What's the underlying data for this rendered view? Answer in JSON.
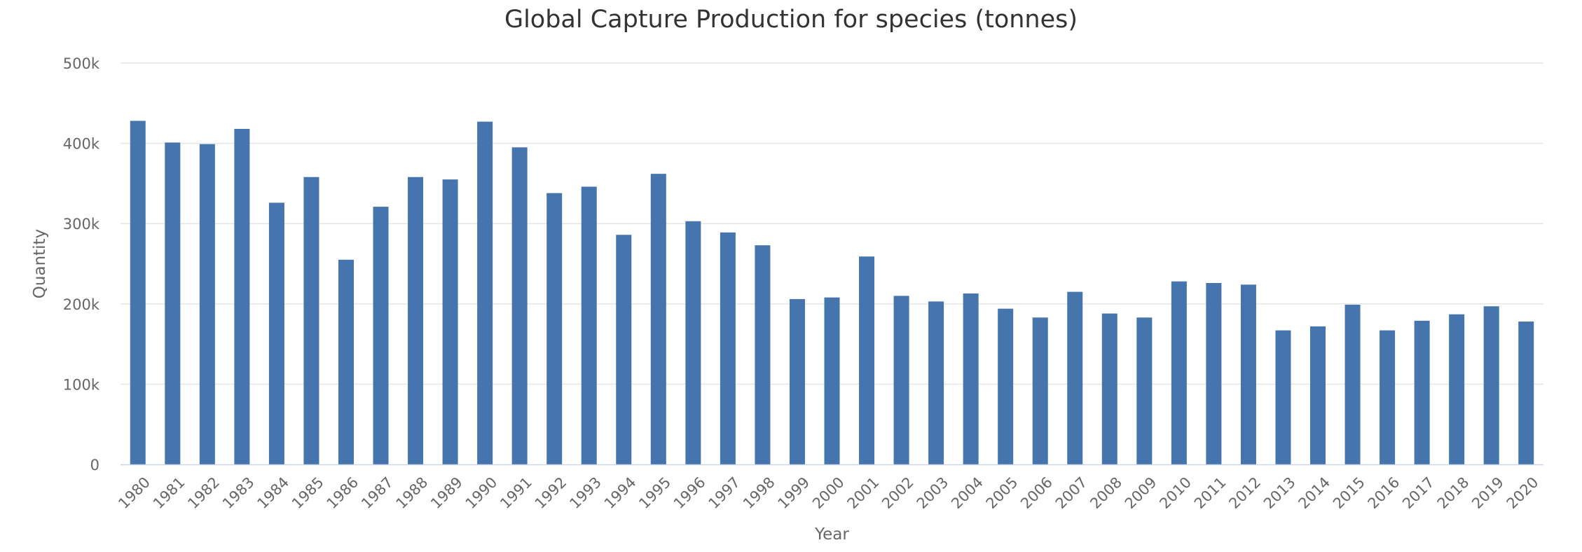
{
  "chart_data": {
    "type": "bar",
    "title": "Global Capture Production for species (tonnes)",
    "xlabel": "Year",
    "ylabel": "Quantity",
    "ylim": [
      0,
      500000
    ],
    "yticks": [
      0,
      100000,
      200000,
      300000,
      400000,
      500000
    ],
    "ytick_labels": [
      "0",
      "100k",
      "200k",
      "300k",
      "400k",
      "500k"
    ],
    "grid": "horizontal",
    "bar_color": "#4575ac",
    "categories": [
      "1980",
      "1981",
      "1982",
      "1983",
      "1984",
      "1985",
      "1986",
      "1987",
      "1988",
      "1989",
      "1990",
      "1991",
      "1992",
      "1993",
      "1994",
      "1995",
      "1996",
      "1997",
      "1998",
      "1999",
      "2000",
      "2001",
      "2002",
      "2003",
      "2004",
      "2005",
      "2006",
      "2007",
      "2008",
      "2009",
      "2010",
      "2011",
      "2012",
      "2013",
      "2014",
      "2015",
      "2016",
      "2017",
      "2018",
      "2019",
      "2020"
    ],
    "values": [
      428000,
      401000,
      399000,
      418000,
      326000,
      358000,
      255000,
      321000,
      358000,
      355000,
      427000,
      395000,
      338000,
      346000,
      286000,
      362000,
      303000,
      289000,
      273000,
      206000,
      208000,
      259000,
      210000,
      203000,
      213000,
      194000,
      183000,
      215000,
      188000,
      183000,
      228000,
      226000,
      224000,
      167000,
      172000,
      199000,
      167000,
      179000,
      187000,
      197000,
      178000
    ]
  }
}
